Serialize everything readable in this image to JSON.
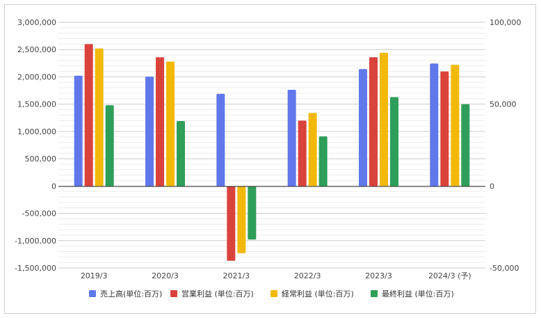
{
  "chart_data": {
    "type": "bar",
    "categories": [
      "2019/3",
      "2020/3",
      "2021/3",
      "2022/3",
      "2023/3",
      "2024/3 (予)"
    ],
    "series": [
      {
        "name": "売上高(単位:百万)",
        "axis": "right",
        "color": "#6178ea",
        "values": [
          67400,
          66800,
          56300,
          58800,
          71400,
          74800
        ]
      },
      {
        "name": "営業利益 (単位:百万)",
        "axis": "left",
        "color": "#d9433c",
        "values": [
          2600000,
          2360000,
          -1370000,
          1200000,
          2360000,
          2100000
        ]
      },
      {
        "name": "経常利益 (単位:百万)",
        "axis": "left",
        "color": "#f2b90b",
        "values": [
          2520000,
          2280000,
          -1230000,
          1340000,
          2440000,
          2220000
        ]
      },
      {
        "name": "最終利益 (単位:百万)",
        "axis": "left",
        "color": "#2f9e5a",
        "values": [
          1480000,
          1190000,
          -980000,
          910000,
          1630000,
          1500000
        ]
      }
    ],
    "left_axis": {
      "ylim": [
        -1500000,
        3000000
      ],
      "ticks": [
        "3,000,000",
        "2,500,000",
        "2,000,000",
        "1,500,000",
        "1,000,000",
        "500,000",
        "0",
        "-500,000",
        "-1,000,000",
        "-1,500,000"
      ],
      "tick_values": [
        3000000,
        2500000,
        2000000,
        1500000,
        1000000,
        500000,
        0,
        -500000,
        -1000000,
        -1500000
      ]
    },
    "right_axis": {
      "ylim": [
        -50000,
        100000
      ],
      "ticks": [
        "100,000",
        "50,000",
        "0",
        "-50,000"
      ],
      "tick_values": [
        100000,
        50000,
        0,
        -50000
      ]
    },
    "grid": true,
    "legend_position": "bottom"
  }
}
